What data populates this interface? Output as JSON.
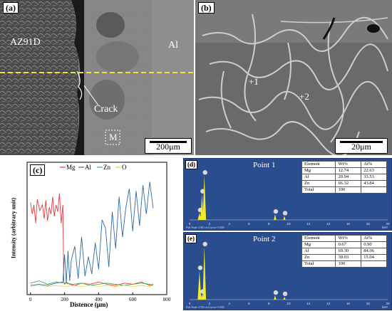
{
  "panel_a": {
    "tag": "(a)",
    "label_left": "AZ91D",
    "label_right": "Al",
    "crack_label": "Crack",
    "marker": "M",
    "scale": "200μm"
  },
  "panel_b": {
    "tag": "(b)",
    "point1": "+1",
    "point2": "+2",
    "scale": "20μm"
  },
  "chart_data": {
    "type": "line",
    "tag": "(c)",
    "xlabel": "Distence (μm)",
    "ylabel": "Intensity (arbitrary unit)",
    "xlim": [
      -20,
      800
    ],
    "xticks": [
      0,
      200,
      400,
      600,
      800
    ],
    "legend": "top",
    "series": [
      {
        "name": "Mg",
        "color": "#e8393b",
        "x": [
          0,
          10,
          20,
          30,
          40,
          55,
          70,
          80,
          90,
          100,
          110,
          120,
          130,
          140,
          150,
          160,
          170,
          180,
          190,
          195,
          200,
          210,
          230,
          260,
          300,
          350,
          400,
          450,
          500,
          550,
          600,
          650,
          700,
          720
        ],
        "y": [
          80,
          70,
          78,
          62,
          83,
          73,
          78,
          66,
          82,
          64,
          76,
          70,
          85,
          68,
          78,
          72,
          88,
          62,
          78,
          12,
          9,
          11,
          9,
          8,
          10,
          9,
          11,
          9,
          8,
          10,
          9,
          11,
          8,
          9
        ]
      },
      {
        "name": "Al",
        "color": "#2f6aa6",
        "x": [
          0,
          50,
          100,
          150,
          190,
          200,
          210,
          220,
          230,
          240,
          260,
          280,
          300,
          320,
          340,
          360,
          380,
          400,
          420,
          440,
          460,
          480,
          500,
          520,
          540,
          560,
          580,
          600,
          620,
          640,
          660,
          680,
          700,
          720
        ],
        "y": [
          8,
          9,
          8,
          10,
          11,
          35,
          10,
          38,
          12,
          30,
          42,
          14,
          50,
          16,
          33,
          18,
          45,
          22,
          65,
          58,
          24,
          72,
          40,
          85,
          50,
          76,
          92,
          55,
          90,
          60,
          95,
          70,
          98,
          75
        ]
      },
      {
        "name": "Zn",
        "color": "#3fae5b",
        "x": [
          0,
          50,
          100,
          150,
          200,
          250,
          300,
          350,
          400,
          450,
          500,
          550,
          600,
          650,
          700,
          720
        ],
        "y": [
          10,
          12,
          9,
          11,
          10,
          9,
          10,
          8,
          9,
          10,
          9,
          8,
          9,
          10,
          9,
          8
        ]
      },
      {
        "name": "O",
        "color": "#e6d73a",
        "x": [
          0,
          50,
          100,
          150,
          200,
          250,
          300,
          350,
          400,
          450,
          500,
          550,
          600,
          650,
          700,
          720
        ],
        "y": [
          7,
          8,
          7,
          8,
          7,
          8,
          7,
          8,
          7,
          8,
          7,
          8,
          7,
          8,
          7,
          8
        ]
      }
    ]
  },
  "eds_d": {
    "tag": "(d)",
    "title": "Point 1",
    "headers": [
      "Element",
      "Wt%",
      "At%"
    ],
    "rows": [
      [
        "Mg",
        "12.74",
        "22.63"
      ],
      [
        "Al",
        "20.94",
        "33.53"
      ],
      [
        "Zn",
        "66.32",
        "43.84"
      ],
      [
        "Total",
        "100",
        ""
      ]
    ],
    "footer": "Full Scale 2165 cts Cursor: 0.000",
    "ticks": [
      "0",
      "2",
      "4",
      "6",
      "8",
      "10",
      "12",
      "14",
      "16",
      "18",
      "20"
    ],
    "unit": "keV",
    "spectrum": {
      "Mg": 0.55,
      "Al": 0.95,
      "Zn_L": 0.15,
      "Zn_K": 0.12
    }
  },
  "eds_e": {
    "tag": "(e)",
    "title": "Point 2",
    "headers": [
      "Element",
      "Wt%",
      "At%"
    ],
    "rows": [
      [
        "Mg",
        "0.67",
        "0.90"
      ],
      [
        "Al",
        "69.30",
        "84.06"
      ],
      [
        "Zn",
        "30.03",
        "15.04"
      ],
      [
        "Total",
        "100",
        ""
      ]
    ],
    "footer": "Full Scale 2720 cts Cursor: 0.000",
    "ticks": [
      "0",
      "2",
      "4",
      "6",
      "8",
      "10",
      "12",
      "14",
      "16",
      "18",
      "20"
    ],
    "unit": "keV",
    "spectrum": {
      "Mg": 0.1,
      "Al": 1.0,
      "Zn_L": 0.55,
      "Zn_K": 0.08
    }
  }
}
